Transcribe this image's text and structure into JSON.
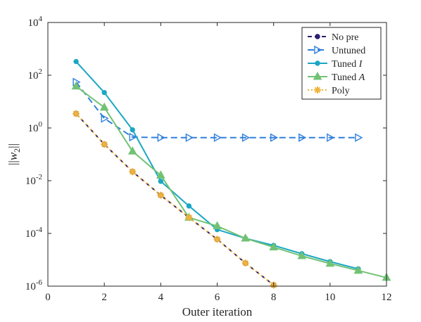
{
  "chart_data": {
    "type": "line",
    "title": "",
    "xlabel": "Outer iteration",
    "ylabel": "||w2||",
    "xlim": [
      0,
      12
    ],
    "ylim": [
      1e-06,
      10000.0
    ],
    "yscale": "log",
    "grid": false,
    "legend_position": "top-right",
    "x_ticks": [
      "0",
      "2",
      "4",
      "6",
      "8",
      "10",
      "12"
    ],
    "y_ticks": [
      {
        "base": "10",
        "exp": "4"
      },
      {
        "base": "10",
        "exp": "2"
      },
      {
        "base": "10",
        "exp": "0"
      },
      {
        "base": "10",
        "exp": "-2"
      },
      {
        "base": "10",
        "exp": "-4"
      },
      {
        "base": "10",
        "exp": "-6"
      }
    ],
    "series": [
      {
        "name": "No pre",
        "color": "#2b1f6e",
        "dash": "6,4",
        "marker": "dot",
        "x": [
          1,
          2,
          3,
          4,
          5,
          6,
          7,
          8
        ],
        "y": [
          3.5,
          0.24,
          0.022,
          0.0028,
          0.0004,
          6e-05,
          7.5e-06,
          1.1e-06
        ]
      },
      {
        "name": "Untuned",
        "color": "#2f7fdc",
        "dash": "9,5",
        "marker": "triangle-right",
        "x": [
          1,
          2,
          3,
          4,
          5,
          6,
          7,
          8,
          9,
          10,
          11
        ],
        "y": [
          55,
          2.3,
          0.45,
          0.43,
          0.43,
          0.43,
          0.43,
          0.43,
          0.43,
          0.43,
          0.43
        ]
      },
      {
        "name": "Tuned I",
        "color": "#1aa7c4",
        "dash": "",
        "marker": "dot",
        "x": [
          1,
          2,
          3,
          4,
          5,
          6,
          7,
          8,
          9,
          10,
          11
        ],
        "y": [
          330,
          22,
          0.85,
          0.0095,
          0.0011,
          0.00014,
          6.5e-05,
          3.5e-05,
          1.7e-05,
          8.5e-06,
          4.5e-06
        ]
      },
      {
        "name": "Tuned A",
        "color": "#72c274",
        "dash": "",
        "marker": "triangle-up",
        "x": [
          1,
          2,
          3,
          4,
          5,
          6,
          7,
          8,
          9,
          10,
          11,
          12
        ],
        "y": [
          38,
          6,
          0.13,
          0.016,
          0.0004,
          0.00019,
          6.5e-05,
          3e-05,
          1.4e-05,
          7.2e-06,
          3.9e-06,
          2.1e-06
        ]
      },
      {
        "name": "Poly",
        "color": "#f0b43a",
        "dash": "2,3",
        "marker": "asterisk",
        "x": [
          1,
          2,
          3,
          4,
          5,
          6,
          7,
          8
        ],
        "y": [
          3.5,
          0.24,
          0.022,
          0.0028,
          0.0004,
          6e-05,
          7.5e-06,
          1.1e-06
        ]
      }
    ]
  },
  "legend_labels": [
    {
      "text": "No pre",
      "italic": ""
    },
    {
      "text": "Untuned",
      "italic": ""
    },
    {
      "text": "Tuned ",
      "italic": "I"
    },
    {
      "text": "Tuned ",
      "italic": "A"
    },
    {
      "text": "Poly",
      "italic": ""
    }
  ]
}
